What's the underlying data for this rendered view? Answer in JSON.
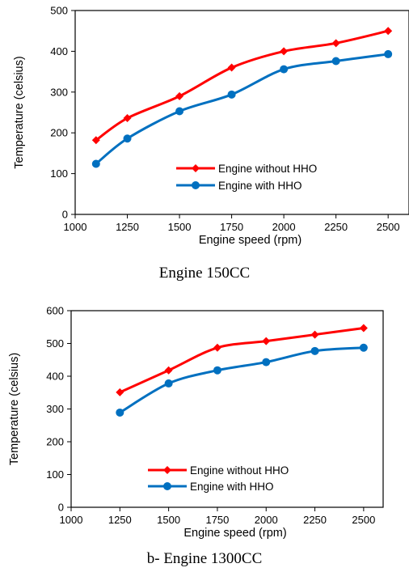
{
  "chart_data": [
    {
      "type": "line",
      "caption": "Engine 150CC",
      "xlabel": "Engine speed (rpm)",
      "ylabel": "Temperature (celsius)",
      "xlim": [
        1000,
        2600
      ],
      "ylim": [
        0,
        500
      ],
      "xticks": [
        1000,
        1250,
        1500,
        1750,
        2000,
        2250,
        2500
      ],
      "yticks": [
        0,
        100,
        200,
        300,
        400,
        500
      ],
      "legend_position": "lower-right",
      "series": [
        {
          "name": "Engine without HHO",
          "color": "#ff0000",
          "marker": "diamond",
          "x": [
            1100,
            1250,
            1500,
            1750,
            2000,
            2250,
            2500
          ],
          "y": [
            182,
            236,
            290,
            360,
            400,
            420,
            450
          ]
        },
        {
          "name": "Engine with HHO",
          "color": "#0070c0",
          "marker": "circle",
          "x": [
            1100,
            1250,
            1500,
            1750,
            2000,
            2250,
            2500
          ],
          "y": [
            124,
            186,
            253,
            294,
            356,
            376,
            393
          ]
        }
      ]
    },
    {
      "type": "line",
      "caption": "b- Engine 1300CC",
      "xlabel": "Engine speed (rpm)",
      "ylabel": "Temperature (celsius)",
      "xlim": [
        1000,
        2600
      ],
      "ylim": [
        0,
        600
      ],
      "xticks": [
        1000,
        1250,
        1500,
        1750,
        2000,
        2250,
        2500
      ],
      "yticks": [
        0,
        100,
        200,
        300,
        400,
        500,
        600
      ],
      "legend_position": "lower-right",
      "series": [
        {
          "name": "Engine without HHO",
          "color": "#ff0000",
          "marker": "diamond",
          "x": [
            1250,
            1500,
            1750,
            2000,
            2250,
            2500
          ],
          "y": [
            351,
            418,
            487,
            507,
            527,
            547
          ]
        },
        {
          "name": "Engine with HHO",
          "color": "#0070c0",
          "marker": "circle",
          "x": [
            1250,
            1500,
            1750,
            2000,
            2250,
            2500
          ],
          "y": [
            289,
            378,
            418,
            443,
            477,
            487
          ]
        }
      ]
    }
  ]
}
